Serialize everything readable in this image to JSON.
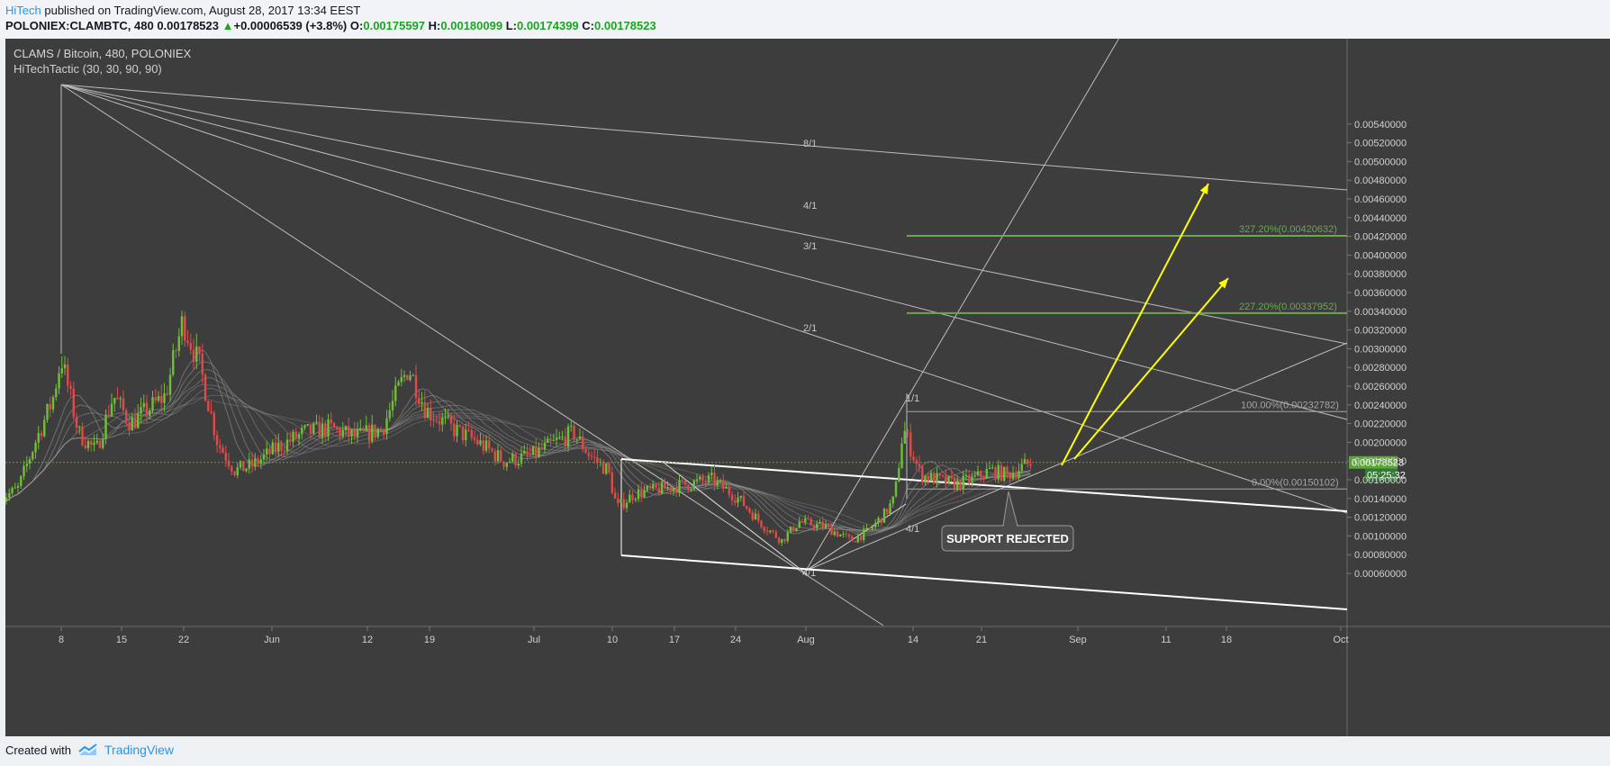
{
  "header": {
    "author": "HiTech",
    "published": " published on TradingView.com, August 28, 2017 13:34 EEST",
    "symbol": "POLONIEX:CLAMBTC, 480",
    "last": "0.00178523",
    "arrow": "▲",
    "change": "+0.00006539 (+3.8%)",
    "o_label": "O:",
    "o_value": "0.00175597",
    "h_label": "H:",
    "h_value": "0.00180099",
    "l_label": "L:",
    "l_value": "0.00174399",
    "c_label": "C:",
    "c_value": "0.00178523"
  },
  "footer": {
    "created_with": "Created with",
    "brand": "TradingView"
  },
  "colors": {
    "background": "#3d3d3d",
    "up": "#6fbf39",
    "down": "#e04a4a",
    "fib": "#6aa84f",
    "arrows": "#ffff00",
    "price_tag": "#5aa637"
  },
  "chart_data": {
    "type": "line",
    "title": "CLAMS / Bitcoin, 480, POLONIEX",
    "indicator": "HiTechTactic (30, 30, 90, 90)",
    "x_ticks": [
      "8",
      "15",
      "22",
      "Jun",
      "12",
      "19",
      "Jul",
      "10",
      "17",
      "24",
      "Aug",
      "14",
      "21",
      "Sep",
      "11",
      "18",
      "Oct"
    ],
    "y_ticks": [
      "0.00540000",
      "0.00520000",
      "0.00500000",
      "0.00480000",
      "0.00460000",
      "0.00440000",
      "0.00420000",
      "0.00400000",
      "0.00380000",
      "0.00360000",
      "0.00340000",
      "0.00320000",
      "0.00300000",
      "0.00280000",
      "0.00260000",
      "0.00240000",
      "0.00220000",
      "0.00200000",
      "0.00180000",
      "0.00160000",
      "0.00140000",
      "0.00120000",
      "0.00100000",
      "0.00080000",
      "0.00060000"
    ],
    "ylim": [
      0.0005,
      0.0055
    ],
    "price_series": {
      "name": "CLAMBTC",
      "x": [
        "May 1",
        "May 3",
        "May 5",
        "May 7",
        "May 8",
        "May 9",
        "May 10",
        "May 12",
        "May 14",
        "May 16",
        "May 18",
        "May 20",
        "May 22",
        "May 24",
        "May 26",
        "May 28",
        "May 30",
        "Jun 2",
        "Jun 5",
        "Jun 8",
        "Jun 11",
        "Jun 14",
        "Jun 16",
        "Jun 17",
        "Jun 19",
        "Jun 22",
        "Jun 25",
        "Jun 28",
        "Jul 1",
        "Jul 4",
        "Jul 6",
        "Jul 8",
        "Jul 10",
        "Jul 11",
        "Jul 13",
        "Jul 16",
        "Jul 19",
        "Jul 22",
        "Jul 25",
        "Jul 28",
        "Jul 30",
        "Aug 1",
        "Aug 4",
        "Aug 7",
        "Aug 9",
        "Aug 11",
        "Aug 12",
        "Aug 13",
        "Aug 15",
        "Aug 17",
        "Aug 19",
        "Aug 21",
        "Aug 23",
        "Aug 25",
        "Aug 27",
        "Aug 28"
      ],
      "values": [
        0.0014,
        0.0015,
        0.002,
        0.00245,
        0.0029,
        0.0025,
        0.0021,
        0.0019,
        0.0025,
        0.0022,
        0.00235,
        0.0025,
        0.0033,
        0.0028,
        0.002,
        0.0017,
        0.00175,
        0.00195,
        0.0021,
        0.00215,
        0.00205,
        0.00215,
        0.0026,
        0.0028,
        0.00235,
        0.00215,
        0.002,
        0.0018,
        0.00185,
        0.002,
        0.0021,
        0.00185,
        0.0017,
        0.0013,
        0.00145,
        0.0015,
        0.00155,
        0.0016,
        0.0014,
        0.0011,
        0.00095,
        0.00115,
        0.0011,
        0.00095,
        0.00105,
        0.00125,
        0.0014,
        0.00215,
        0.00165,
        0.0016,
        0.00155,
        0.0016,
        0.0017,
        0.00165,
        0.00175,
        0.00178523
      ]
    },
    "last_price": "0.00178523",
    "countdown": "05:25:32",
    "fan_labels": [
      "8/1",
      "4/1",
      "3/1",
      "2/1",
      "1/1",
      "4/1",
      "4/1"
    ],
    "fib_levels": [
      {
        "label": "327.20%(0.00420632)",
        "value": 0.00420632
      },
      {
        "label": "227.20%(0.00337952)",
        "value": 0.00337952
      },
      {
        "label": "100.00%(0.00232782)",
        "value": 0.00232782
      },
      {
        "label": "0.00%(0.00150102)",
        "value": 0.00150102
      }
    ],
    "annotation": "SUPPORT REJECTED"
  }
}
